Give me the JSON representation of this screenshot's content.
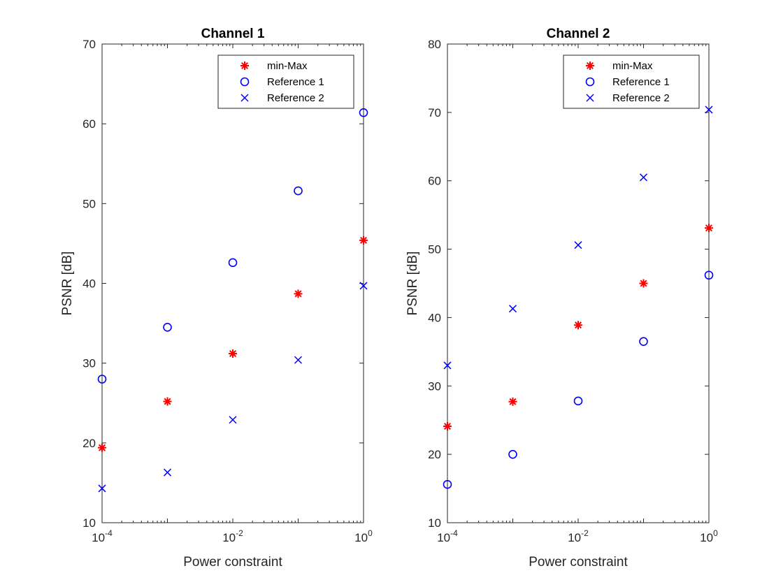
{
  "chart_data": [
    {
      "type": "scatter",
      "title": "Channel 1",
      "xlabel": "Power constraint",
      "ylabel": "PSNR [dB]",
      "xscale": "log",
      "xlim": [
        0.0001,
        1
      ],
      "ylim": [
        10,
        70
      ],
      "yticks": [
        10,
        20,
        30,
        40,
        50,
        60,
        70
      ],
      "xticks": [
        {
          "value": 0.0001,
          "base": "10",
          "exp": "-4"
        },
        {
          "value": 0.01,
          "base": "10",
          "exp": "-2"
        },
        {
          "value": 1,
          "base": "10",
          "exp": "0"
        }
      ],
      "x": [
        0.0001,
        0.001,
        0.01,
        0.1,
        1
      ],
      "legend_position": "top-right",
      "grid": false,
      "series": [
        {
          "name": "min-Max",
          "marker": "asterisk",
          "color": "#ff0000",
          "values": [
            19.4,
            25.2,
            31.2,
            38.7,
            45.4
          ]
        },
        {
          "name": "Reference 1",
          "marker": "circle",
          "color": "#0000ff",
          "values": [
            28.0,
            34.5,
            42.6,
            51.6,
            61.4
          ]
        },
        {
          "name": "Reference 2",
          "marker": "x",
          "color": "#0000ff",
          "values": [
            14.3,
            16.3,
            22.9,
            30.4,
            39.7
          ]
        }
      ]
    },
    {
      "type": "scatter",
      "title": "Channel 2",
      "xlabel": "Power constraint",
      "ylabel": "PSNR [dB]",
      "xscale": "log",
      "xlim": [
        0.0001,
        1
      ],
      "ylim": [
        10,
        80
      ],
      "yticks": [
        10,
        20,
        30,
        40,
        50,
        60,
        70,
        80
      ],
      "xticks": [
        {
          "value": 0.0001,
          "base": "10",
          "exp": "-4"
        },
        {
          "value": 0.01,
          "base": "10",
          "exp": "-2"
        },
        {
          "value": 1,
          "base": "10",
          "exp": "0"
        }
      ],
      "x": [
        0.0001,
        0.001,
        0.01,
        0.1,
        1
      ],
      "legend_position": "top-right",
      "grid": false,
      "series": [
        {
          "name": "min-Max",
          "marker": "asterisk",
          "color": "#ff0000",
          "values": [
            24.1,
            27.7,
            38.9,
            45.0,
            53.1
          ]
        },
        {
          "name": "Reference 1",
          "marker": "circle",
          "color": "#0000ff",
          "values": [
            15.6,
            20.0,
            27.8,
            36.5,
            46.2
          ]
        },
        {
          "name": "Reference 2",
          "marker": "x",
          "color": "#0000ff",
          "values": [
            33.0,
            41.3,
            50.6,
            60.5,
            70.4
          ]
        }
      ]
    }
  ]
}
